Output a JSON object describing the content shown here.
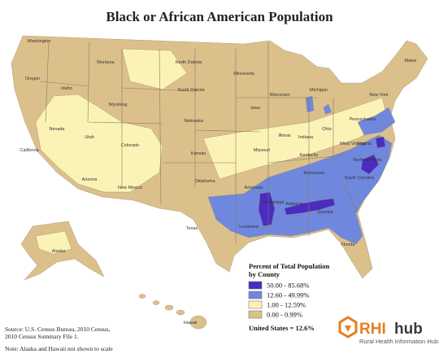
{
  "title": "Black or African American Population",
  "legend": {
    "title_lines": [
      "Percent of Total Population",
      "by County"
    ],
    "items": [
      {
        "label": "50.00 - 85.68%",
        "color": "#4a2cc0"
      },
      {
        "label": "12.60 - 49.99%",
        "color": "#6f88dd"
      },
      {
        "label": "1.00 - 12.59%",
        "color": "#fbf3b6"
      },
      {
        "label": "0.00 - 0.99%",
        "color": "#dcc08c"
      }
    ]
  },
  "us_total": "United States = 12.6%",
  "source": [
    "Source: U.S. Census Bureau, 2010 Census,",
    "2010 Census Summary File 1."
  ],
  "note": "Note: Alaska and Hawaii not shown to scale",
  "logo": {
    "mark": "RHI",
    "word": "hub",
    "subtitle": "Rural Health Information Hub"
  },
  "state_labels": [
    "Washington",
    "Oregon",
    "Idaho",
    "Montana",
    "Wyoming",
    "Nevada",
    "Utah",
    "California",
    "Colorado",
    "Arizona",
    "New Mexico",
    "North Dakota",
    "South Dakota",
    "Nebraska",
    "Kansas",
    "Oklahoma",
    "Texas",
    "Minnesota",
    "Iowa",
    "Missouri",
    "Arkansas",
    "Louisiana",
    "Wisconsin",
    "Illinois",
    "Michigan",
    "Indiana",
    "Ohio",
    "Kentucky",
    "Tennessee",
    "Mississippi",
    "Alabama",
    "Georgia",
    "Florida",
    "South Carolina",
    "North Carolina",
    "Virginia",
    "West Virginia",
    "Pennsylvania",
    "New York",
    "Maine",
    "Alaska",
    "Hawaii"
  ]
}
